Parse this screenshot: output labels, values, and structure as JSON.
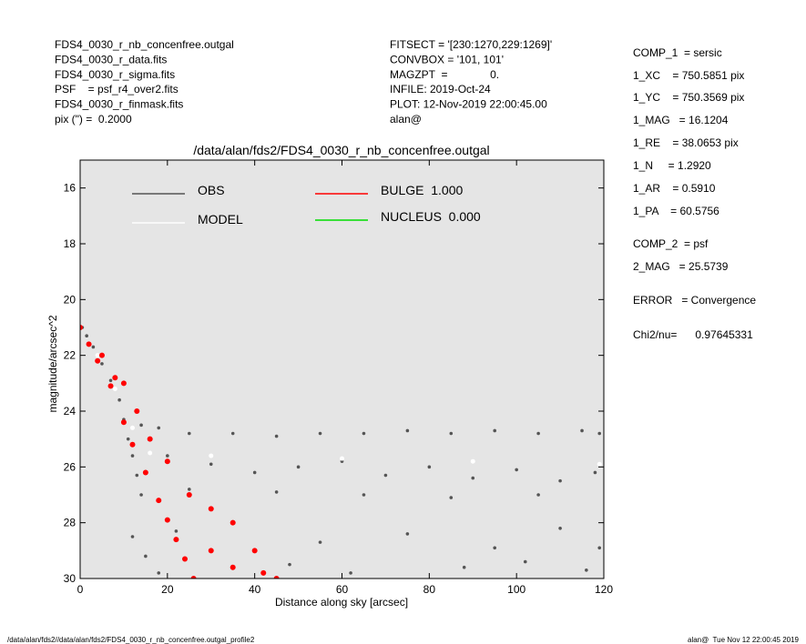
{
  "chart_data": {
    "type": "scatter",
    "title": "/data/alan/fds2/FDS4_0030_r_nb_concenfree.outgal",
    "x_label": "Distance along sky [arcsec]",
    "y_label": "magnitude/arcsec^2",
    "xlim": [
      0,
      120
    ],
    "xticks": [
      0,
      20,
      40,
      60,
      80,
      100,
      120
    ],
    "ylim": [
      30,
      15
    ],
    "yticks": [
      16,
      18,
      20,
      22,
      24,
      26,
      28,
      30
    ],
    "background": "#e5e5e5",
    "series": [
      {
        "name": "OBS",
        "color": "#555555",
        "x": [
          0.5,
          1.5,
          3,
          5,
          7,
          9,
          10,
          11,
          12,
          13,
          14,
          14,
          18,
          25,
          35,
          45,
          55,
          65,
          75,
          85,
          95,
          105,
          115,
          119,
          20,
          30,
          40,
          50,
          60,
          70,
          80,
          90,
          100,
          110,
          118,
          25,
          45,
          65,
          85,
          105,
          12,
          15,
          18,
          22,
          35,
          48,
          55,
          62,
          75,
          88,
          95,
          102,
          110,
          116,
          119
        ],
        "values": [
          21.0,
          21.3,
          21.7,
          22.3,
          22.9,
          23.6,
          24.3,
          25.0,
          25.6,
          26.3,
          27.0,
          24.5,
          24.6,
          24.8,
          24.8,
          24.9,
          24.8,
          24.8,
          24.7,
          24.8,
          24.7,
          24.8,
          24.7,
          24.8,
          25.6,
          25.9,
          26.2,
          26.0,
          25.8,
          26.3,
          26.0,
          26.4,
          26.1,
          26.5,
          26.2,
          26.8,
          26.9,
          27.0,
          27.1,
          27.0,
          28.5,
          29.2,
          29.8,
          28.3,
          28.0,
          29.5,
          28.7,
          29.8,
          28.4,
          29.6,
          28.9,
          29.4,
          28.2,
          29.7,
          28.9
        ]
      },
      {
        "name": "MODEL",
        "color": "#ffffff",
        "x": [
          0,
          4,
          8,
          12,
          16,
          30,
          60,
          90,
          119
        ],
        "values": [
          21.0,
          22.0,
          23.2,
          24.6,
          25.5,
          25.6,
          25.7,
          25.8,
          25.9
        ]
      },
      {
        "name": "BULGE  1.000",
        "color": "#ff0000",
        "x": [
          0,
          2,
          4,
          5,
          7,
          8,
          10,
          10,
          12,
          13,
          15,
          16,
          18,
          20,
          20,
          22,
          24,
          25,
          26,
          30,
          30,
          35,
          35,
          40,
          42,
          45
        ],
        "values": [
          21.0,
          21.6,
          22.2,
          22.0,
          23.1,
          22.8,
          24.4,
          23.0,
          25.2,
          24.0,
          26.2,
          25.0,
          27.2,
          25.8,
          27.9,
          28.6,
          29.3,
          27.0,
          30.0,
          27.5,
          29.0,
          28.0,
          29.6,
          29.0,
          29.8,
          30.0
        ]
      },
      {
        "name": "NUCLEUS  0.000",
        "color": "#00dd00"
      }
    ]
  },
  "header_left": [
    "FDS4_0030_r_nb_concenfree.outgal",
    "FDS4_0030_r_data.fits",
    "FDS4_0030_r_sigma.fits",
    "PSF    = psf_r4_over2.fits",
    "FDS4_0030_r_finmask.fits",
    "pix (\") =  0.2000"
  ],
  "header_middle": [
    "FITSECT = '[230:1270,229:1269]'",
    "CONVBOX = '101, 101'",
    "MAGZPT  =              0.",
    "INFILE: 2019-Oct-24",
    "PLOT: 12-Nov-2019 22:00:45.00",
    "alan@"
  ],
  "params": [
    "COMP_1  = sersic",
    "1_XC    = 750.5851 pix",
    "1_YC    = 750.3569 pix",
    "1_MAG   = 16.1204",
    "1_RE    = 38.0653 pix",
    "1_N     = 1.2920",
    "1_AR    = 0.5910",
    "1_PA    = 60.5756",
    "COMP_2  = psf",
    "2_MAG   = 25.5739",
    "ERROR   = Convergence",
    "Chi2/nu=      0.97645331"
  ],
  "footer_left": "/data/alan/fds2//data/alan/fds2/FDS4_0030_r_nb_concenfree.outgal_profile2",
  "footer_right": "alan@  Tue Nov 12 22:00:45 2019"
}
